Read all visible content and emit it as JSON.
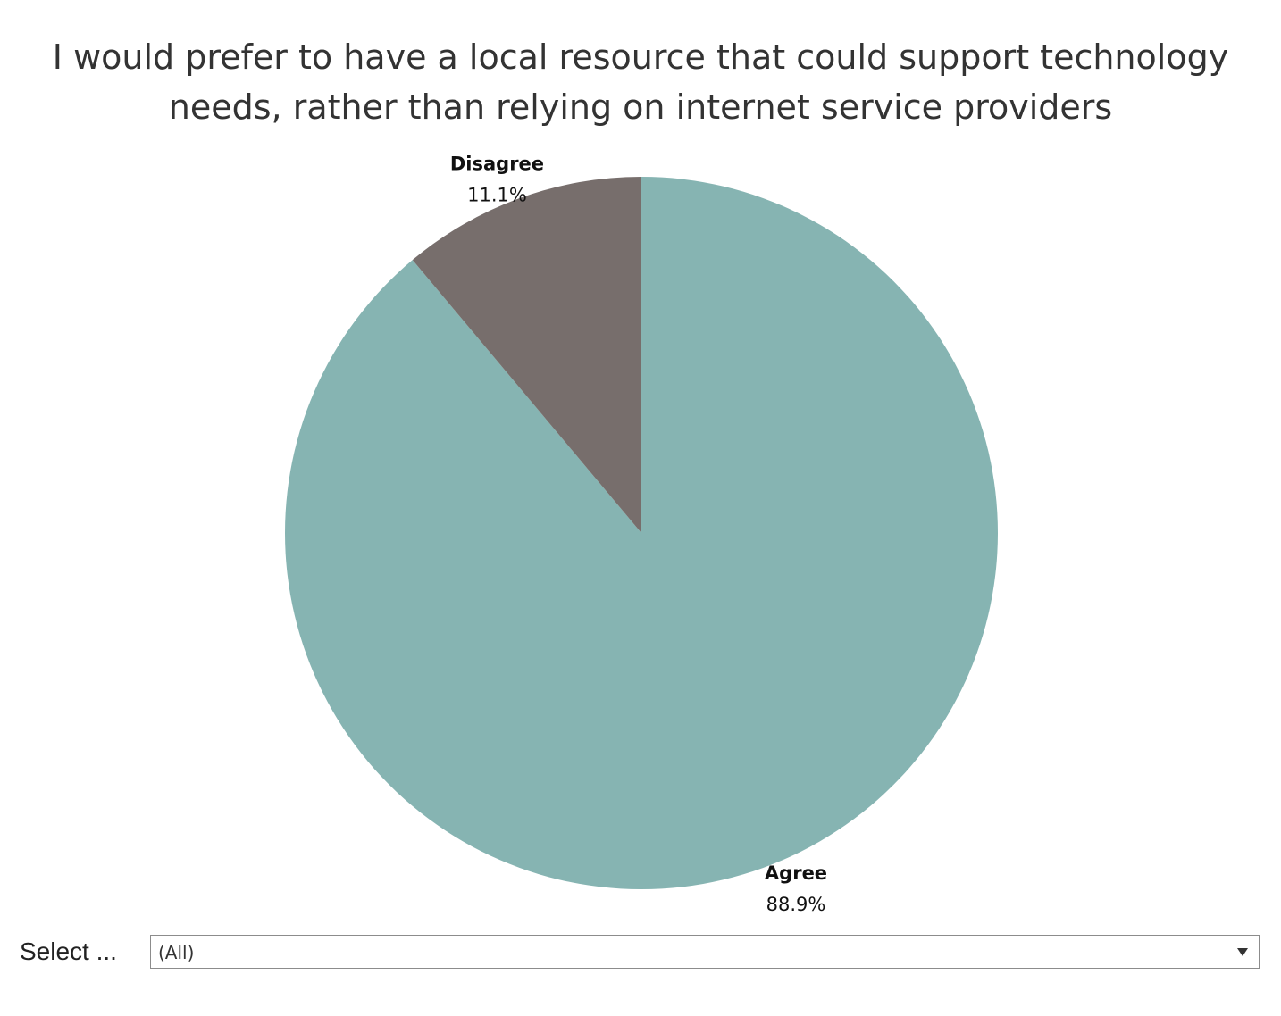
{
  "chart_data": {
    "type": "pie",
    "title": [
      "I would prefer to have a local resource that could support technology",
      "needs, rather than relying on internet service providers"
    ],
    "slices": [
      {
        "name": "Agree",
        "value": 88.9,
        "label": "88.9%",
        "color": "#86b4b2"
      },
      {
        "name": "Disagree",
        "value": 11.1,
        "label": "11.1%",
        "color": "#776e6c"
      }
    ],
    "start_angle_deg": 0,
    "direction": "clockwise"
  },
  "filter": {
    "label": "Select ...",
    "value": "(All)",
    "icon": "chevron-down-icon"
  }
}
